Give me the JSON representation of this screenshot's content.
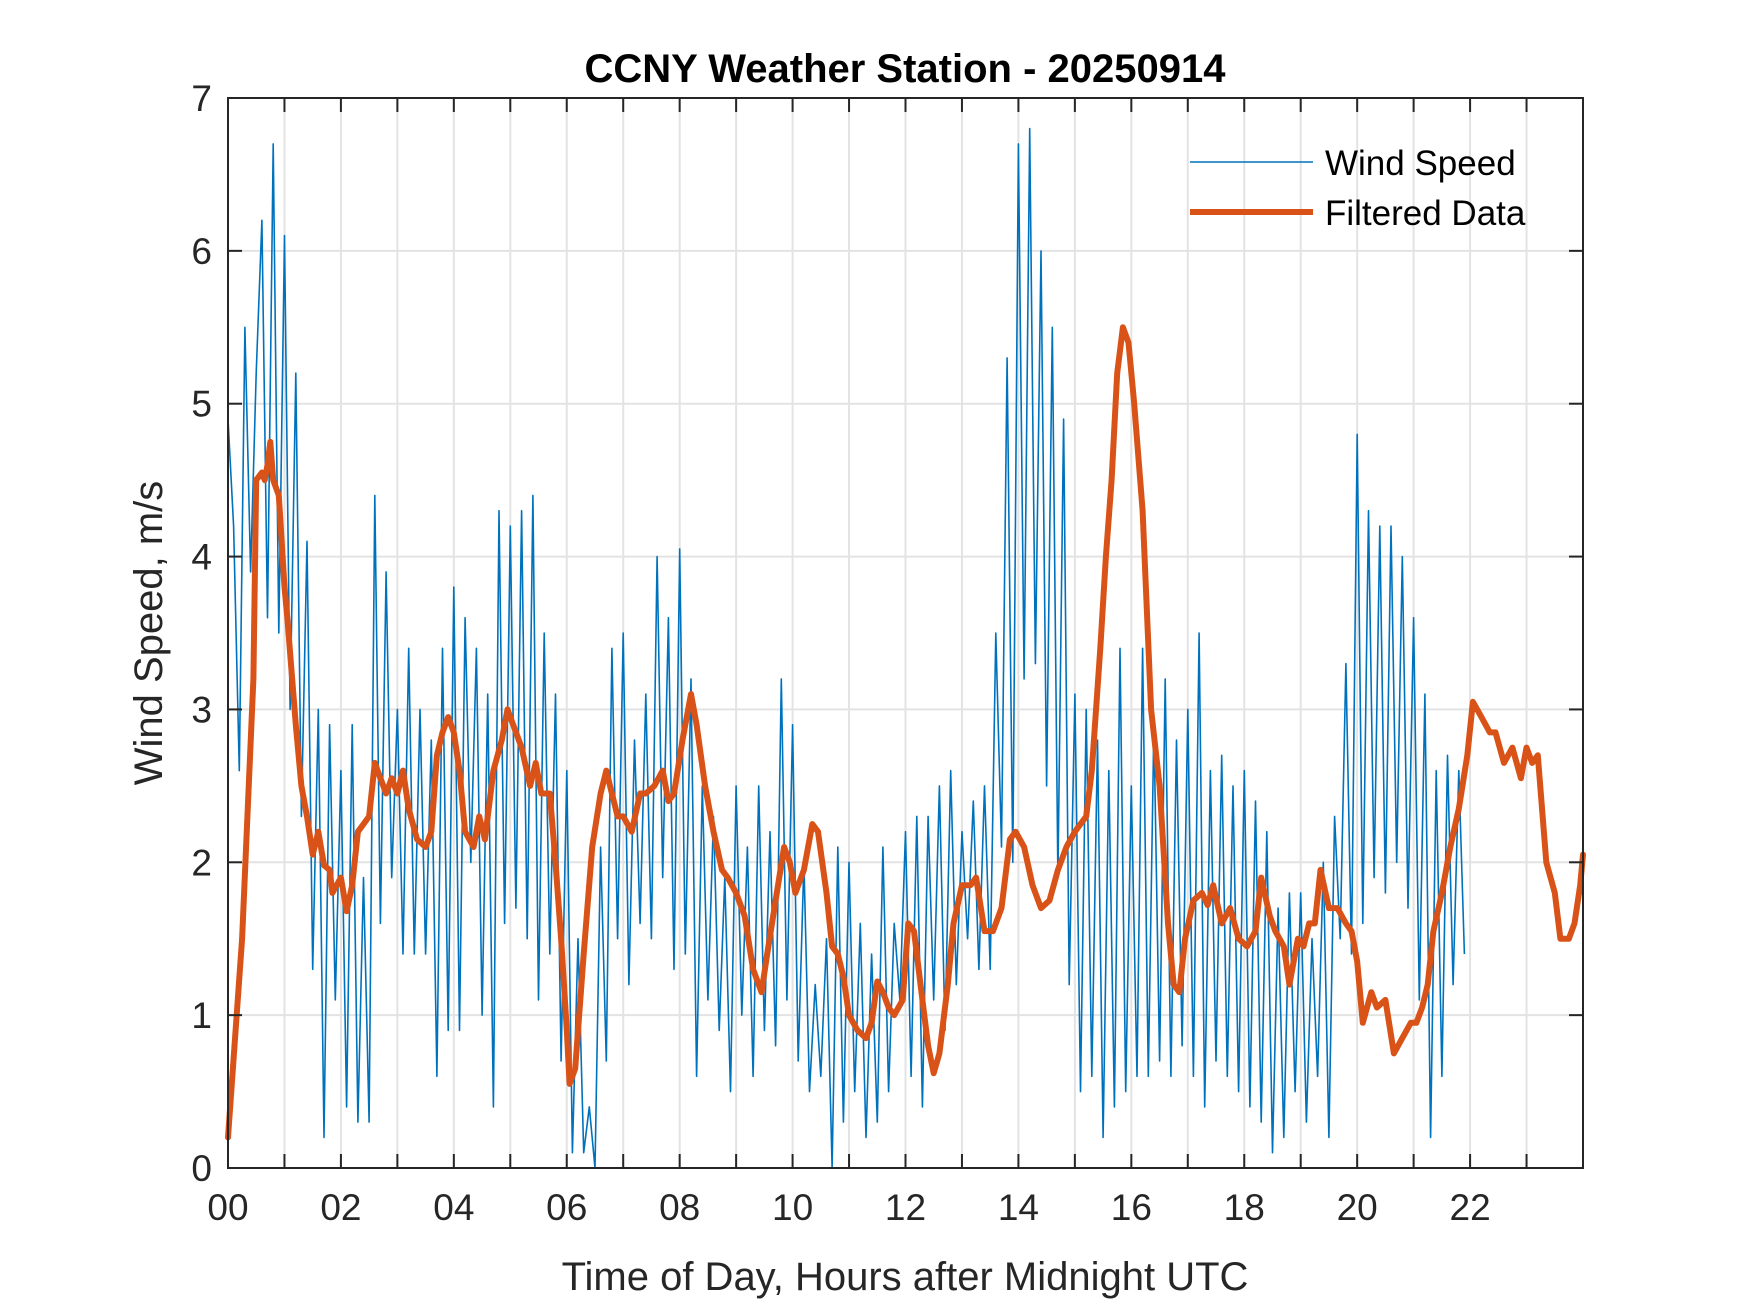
{
  "chart_data": {
    "type": "line",
    "title": "CCNY Weather Station - 20250914",
    "xlabel": "Time of Day, Hours after Midnight UTC",
    "ylabel": "Wind Speed, m/s",
    "xlim": [
      0,
      24
    ],
    "ylim": [
      0,
      7
    ],
    "grid": true,
    "x_ticks": [
      0,
      2,
      4,
      6,
      8,
      10,
      12,
      14,
      16,
      18,
      20,
      22
    ],
    "x_tick_labels": [
      "00",
      "02",
      "04",
      "06",
      "08",
      "10",
      "12",
      "14",
      "16",
      "18",
      "20",
      "22"
    ],
    "x_minor_grid_step_hours": 1,
    "y_ticks": [
      0,
      1,
      2,
      3,
      4,
      5,
      6,
      7
    ],
    "y_tick_labels": [
      "0",
      "1",
      "2",
      "3",
      "4",
      "5",
      "6",
      "7"
    ],
    "legend": {
      "placement": "top-right",
      "entries": [
        "Wind Speed",
        "Filtered Data"
      ]
    },
    "series": [
      {
        "name": "Wind Speed",
        "color": "#0072BD",
        "style": "thin",
        "x_step_hours": 0.1,
        "values": [
          4.9,
          4.2,
          2.6,
          5.5,
          3.9,
          5.2,
          6.2,
          3.6,
          6.7,
          3.5,
          6.1,
          3.0,
          5.2,
          2.3,
          4.1,
          1.3,
          3.0,
          0.2,
          2.9,
          1.1,
          2.6,
          0.4,
          2.9,
          0.3,
          1.9,
          0.3,
          4.4,
          1.6,
          3.9,
          1.9,
          3.0,
          1.4,
          3.4,
          1.4,
          3.0,
          1.4,
          2.8,
          0.6,
          3.4,
          0.9,
          3.8,
          0.9,
          3.6,
          2.0,
          3.4,
          1.0,
          3.1,
          0.4,
          4.3,
          1.6,
          4.2,
          1.7,
          4.3,
          1.5,
          4.4,
          1.1,
          3.5,
          1.4,
          3.1,
          0.7,
          2.6,
          0.1,
          1.5,
          0.1,
          0.4,
          0.0,
          2.1,
          0.7,
          3.4,
          1.5,
          3.5,
          1.2,
          2.8,
          1.6,
          3.1,
          1.5,
          4.0,
          1.9,
          3.6,
          1.3,
          4.05,
          1.4,
          3.2,
          0.6,
          2.5,
          1.1,
          2.3,
          0.9,
          1.9,
          0.5,
          2.5,
          1.0,
          2.1,
          0.6,
          2.5,
          0.9,
          2.2,
          0.8,
          3.2,
          1.1,
          2.9,
          0.7,
          2.0,
          0.5,
          1.2,
          0.6,
          1.5,
          0.0,
          2.1,
          0.3,
          2.0,
          0.5,
          1.6,
          0.2,
          1.4,
          0.3,
          2.1,
          0.5,
          1.6,
          1.1,
          2.2,
          0.6,
          2.3,
          0.4,
          2.3,
          1.1,
          2.5,
          0.9,
          2.6,
          1.2,
          2.2,
          1.5,
          2.4,
          1.3,
          2.5,
          1.3,
          3.5,
          2.1,
          5.3,
          2.0,
          6.7,
          3.2,
          6.8,
          3.3,
          6.0,
          2.5,
          5.5,
          1.9,
          4.9,
          1.2,
          3.1,
          0.5,
          3.0,
          0.6,
          2.8,
          0.2,
          2.6,
          0.4,
          3.4,
          0.5,
          2.5,
          0.6,
          3.4,
          0.6,
          2.9,
          0.7,
          3.2,
          0.6,
          2.8,
          0.8,
          3.0,
          0.6,
          3.5,
          0.4,
          2.6,
          0.7,
          2.7,
          0.6,
          2.5,
          0.5,
          2.6,
          0.4,
          2.4,
          0.3,
          2.2,
          0.1,
          1.7,
          0.2,
          1.8,
          0.5,
          1.8,
          0.3,
          1.5,
          0.6,
          2.0,
          0.2,
          2.3,
          1.5,
          3.3,
          1.4,
          4.8,
          1.6,
          4.3,
          1.9,
          4.2,
          1.8,
          4.2,
          2.0,
          4.0,
          1.7,
          3.6,
          1.1,
          3.1,
          0.2,
          2.6,
          0.6,
          2.7,
          1.2,
          2.6,
          1.4
        ]
      },
      {
        "name": "Filtered Data",
        "color": "#D95319",
        "style": "thick",
        "points": [
          [
            0.0,
            0.2
          ],
          [
            0.25,
            1.5
          ],
          [
            0.45,
            3.2
          ],
          [
            0.5,
            4.5
          ],
          [
            0.6,
            4.55
          ],
          [
            0.65,
            4.5
          ],
          [
            0.7,
            4.6
          ],
          [
            0.75,
            4.75
          ],
          [
            0.8,
            4.5
          ],
          [
            0.9,
            4.4
          ],
          [
            1.0,
            3.8
          ],
          [
            1.05,
            3.6
          ],
          [
            1.2,
            2.9
          ],
          [
            1.3,
            2.5
          ],
          [
            1.4,
            2.3
          ],
          [
            1.5,
            2.05
          ],
          [
            1.6,
            2.2
          ],
          [
            1.7,
            1.98
          ],
          [
            1.8,
            1.95
          ],
          [
            1.85,
            1.8
          ],
          [
            2.0,
            1.9
          ],
          [
            2.1,
            1.68
          ],
          [
            2.2,
            1.85
          ],
          [
            2.3,
            2.2
          ],
          [
            2.4,
            2.25
          ],
          [
            2.5,
            2.3
          ],
          [
            2.6,
            2.65
          ],
          [
            2.7,
            2.55
          ],
          [
            2.8,
            2.45
          ],
          [
            2.9,
            2.55
          ],
          [
            3.0,
            2.45
          ],
          [
            3.1,
            2.6
          ],
          [
            3.2,
            2.35
          ],
          [
            3.35,
            2.15
          ],
          [
            3.5,
            2.1
          ],
          [
            3.6,
            2.2
          ],
          [
            3.7,
            2.7
          ],
          [
            3.8,
            2.85
          ],
          [
            3.9,
            2.95
          ],
          [
            4.0,
            2.85
          ],
          [
            4.1,
            2.6
          ],
          [
            4.2,
            2.2
          ],
          [
            4.35,
            2.1
          ],
          [
            4.45,
            2.3
          ],
          [
            4.55,
            2.15
          ],
          [
            4.7,
            2.6
          ],
          [
            4.85,
            2.8
          ],
          [
            4.95,
            3.0
          ],
          [
            5.05,
            2.9
          ],
          [
            5.2,
            2.75
          ],
          [
            5.35,
            2.5
          ],
          [
            5.45,
            2.65
          ],
          [
            5.55,
            2.45
          ],
          [
            5.7,
            2.45
          ],
          [
            5.8,
            2.0
          ],
          [
            5.9,
            1.5
          ],
          [
            6.0,
            0.9
          ],
          [
            6.05,
            0.55
          ],
          [
            6.15,
            0.65
          ],
          [
            6.3,
            1.4
          ],
          [
            6.45,
            2.1
          ],
          [
            6.6,
            2.45
          ],
          [
            6.7,
            2.6
          ],
          [
            6.8,
            2.45
          ],
          [
            6.9,
            2.3
          ],
          [
            7.0,
            2.3
          ],
          [
            7.15,
            2.2
          ],
          [
            7.3,
            2.45
          ],
          [
            7.4,
            2.45
          ],
          [
            7.55,
            2.5
          ],
          [
            7.7,
            2.6
          ],
          [
            7.8,
            2.4
          ],
          [
            7.9,
            2.45
          ],
          [
            8.05,
            2.8
          ],
          [
            8.2,
            3.1
          ],
          [
            8.3,
            2.9
          ],
          [
            8.45,
            2.5
          ],
          [
            8.6,
            2.2
          ],
          [
            8.75,
            1.95
          ],
          [
            8.85,
            1.9
          ],
          [
            9.0,
            1.8
          ],
          [
            9.15,
            1.65
          ],
          [
            9.3,
            1.3
          ],
          [
            9.45,
            1.15
          ],
          [
            9.55,
            1.4
          ],
          [
            9.7,
            1.75
          ],
          [
            9.85,
            2.1
          ],
          [
            9.95,
            2.0
          ],
          [
            10.05,
            1.8
          ],
          [
            10.2,
            1.95
          ],
          [
            10.35,
            2.25
          ],
          [
            10.45,
            2.2
          ],
          [
            10.6,
            1.8
          ],
          [
            10.7,
            1.45
          ],
          [
            10.8,
            1.4
          ],
          [
            10.9,
            1.25
          ],
          [
            11.0,
            1.0
          ],
          [
            11.15,
            0.9
          ],
          [
            11.3,
            0.85
          ],
          [
            11.4,
            0.95
          ],
          [
            11.5,
            1.22
          ],
          [
            11.6,
            1.15
          ],
          [
            11.7,
            1.05
          ],
          [
            11.8,
            1.0
          ],
          [
            11.95,
            1.1
          ],
          [
            12.05,
            1.6
          ],
          [
            12.15,
            1.55
          ],
          [
            12.3,
            1.1
          ],
          [
            12.4,
            0.8
          ],
          [
            12.5,
            0.62
          ],
          [
            12.6,
            0.75
          ],
          [
            12.75,
            1.2
          ],
          [
            12.85,
            1.6
          ],
          [
            13.0,
            1.85
          ],
          [
            13.15,
            1.85
          ],
          [
            13.25,
            1.9
          ],
          [
            13.4,
            1.55
          ],
          [
            13.55,
            1.55
          ],
          [
            13.7,
            1.7
          ],
          [
            13.85,
            2.15
          ],
          [
            13.95,
            2.2
          ],
          [
            14.1,
            2.1
          ],
          [
            14.25,
            1.85
          ],
          [
            14.4,
            1.7
          ],
          [
            14.55,
            1.75
          ],
          [
            14.7,
            1.95
          ],
          [
            14.85,
            2.1
          ],
          [
            15.0,
            2.2
          ],
          [
            15.2,
            2.3
          ],
          [
            15.3,
            2.6
          ],
          [
            15.45,
            3.4
          ],
          [
            15.55,
            4.0
          ],
          [
            15.65,
            4.5
          ],
          [
            15.75,
            5.2
          ],
          [
            15.85,
            5.5
          ],
          [
            15.95,
            5.4
          ],
          [
            16.05,
            5.0
          ],
          [
            16.2,
            4.3
          ],
          [
            16.35,
            3.0
          ],
          [
            16.5,
            2.5
          ],
          [
            16.65,
            1.6
          ],
          [
            16.75,
            1.2
          ],
          [
            16.85,
            1.15
          ],
          [
            16.95,
            1.5
          ],
          [
            17.1,
            1.75
          ],
          [
            17.25,
            1.8
          ],
          [
            17.35,
            1.72
          ],
          [
            17.45,
            1.85
          ],
          [
            17.6,
            1.6
          ],
          [
            17.75,
            1.7
          ],
          [
            17.9,
            1.5
          ],
          [
            18.05,
            1.45
          ],
          [
            18.2,
            1.55
          ],
          [
            18.3,
            1.9
          ],
          [
            18.45,
            1.65
          ],
          [
            18.55,
            1.55
          ],
          [
            18.7,
            1.45
          ],
          [
            18.8,
            1.2
          ],
          [
            18.95,
            1.5
          ],
          [
            19.05,
            1.45
          ],
          [
            19.15,
            1.6
          ],
          [
            19.25,
            1.6
          ],
          [
            19.35,
            1.95
          ],
          [
            19.5,
            1.7
          ],
          [
            19.65,
            1.7
          ],
          [
            19.8,
            1.6
          ],
          [
            19.9,
            1.55
          ],
          [
            20.0,
            1.35
          ],
          [
            20.1,
            0.95
          ],
          [
            20.25,
            1.15
          ],
          [
            20.35,
            1.05
          ],
          [
            20.5,
            1.1
          ],
          [
            20.65,
            0.75
          ],
          [
            20.8,
            0.85
          ],
          [
            20.95,
            0.95
          ],
          [
            21.05,
            0.95
          ],
          [
            21.15,
            1.05
          ],
          [
            21.25,
            1.2
          ],
          [
            21.35,
            1.55
          ],
          [
            21.5,
            1.8
          ],
          [
            21.65,
            2.1
          ],
          [
            21.8,
            2.35
          ],
          [
            21.95,
            2.7
          ],
          [
            22.05,
            3.05
          ],
          [
            22.2,
            2.95
          ],
          [
            22.35,
            2.85
          ],
          [
            22.45,
            2.85
          ],
          [
            22.6,
            2.65
          ],
          [
            22.75,
            2.75
          ],
          [
            22.9,
            2.55
          ],
          [
            23.0,
            2.75
          ],
          [
            23.1,
            2.65
          ],
          [
            23.2,
            2.7
          ],
          [
            23.35,
            2.0
          ],
          [
            23.5,
            1.8
          ],
          [
            23.6,
            1.5
          ],
          [
            23.75,
            1.5
          ],
          [
            23.85,
            1.6
          ],
          [
            23.95,
            1.85
          ],
          [
            24.0,
            2.05
          ]
        ]
      }
    ]
  }
}
